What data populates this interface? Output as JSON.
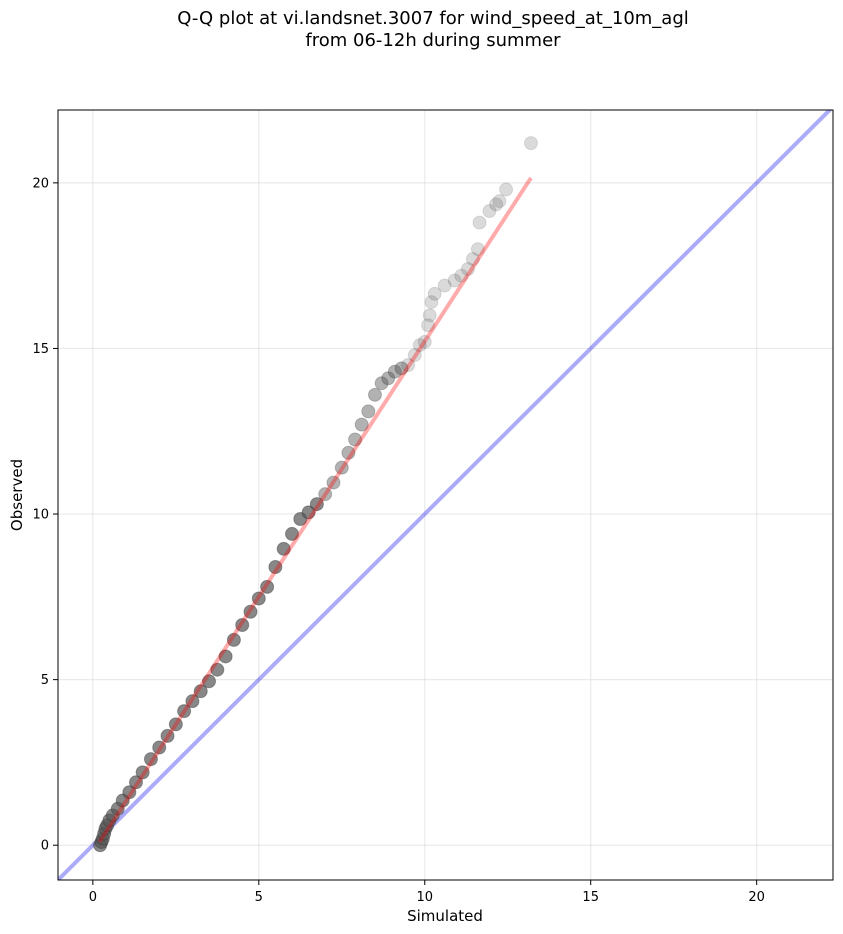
{
  "chart_data": {
    "type": "scatter",
    "title_line1": "Q-Q plot at vi.landsnet.3007 for wind_speed_at_10m_agl",
    "title_line2": "from 06-12h during summer",
    "xlabel": "Simulated",
    "ylabel": "Observed",
    "xlim": [
      -1.05,
      22.3
    ],
    "ylim": [
      -1.05,
      22.2
    ],
    "xticks": [
      0,
      5,
      10,
      15,
      20
    ],
    "yticks": [
      0,
      5,
      10,
      15,
      20
    ],
    "grid": true,
    "colors": {
      "points": "#555555",
      "fit_line": "#ff0000",
      "identity_line": "#0000ee",
      "grid": "#d8d8d8"
    },
    "fit_line": {
      "x": [
        0.2,
        13.2
      ],
      "y": [
        0.1,
        20.15
      ]
    },
    "identity_line": {
      "x": [
        -1.05,
        22.3
      ],
      "y": [
        -1.05,
        22.3
      ]
    },
    "points": {
      "x": [
        0.22,
        0.26,
        0.3,
        0.34,
        0.38,
        0.43,
        0.5,
        0.6,
        0.75,
        0.9,
        1.1,
        1.3,
        1.5,
        1.75,
        2.0,
        2.25,
        2.5,
        2.75,
        3.0,
        3.25,
        3.5,
        3.75,
        4.0,
        4.25,
        4.5,
        4.75,
        5.0,
        5.25,
        5.5,
        5.75,
        6.0,
        6.25,
        6.5,
        6.75,
        7.0,
        7.25,
        7.5,
        7.7,
        7.9,
        8.1,
        8.3,
        8.5,
        8.7,
        8.9,
        9.1,
        9.3,
        9.5,
        9.7,
        9.85,
        10.0,
        10.1,
        10.15,
        10.2,
        10.3,
        10.6,
        10.9,
        11.1,
        11.3,
        11.45,
        11.6,
        11.65,
        11.95,
        12.15,
        12.25,
        12.45,
        13.2
      ],
      "y": [
        0.0,
        0.1,
        0.2,
        0.35,
        0.5,
        0.6,
        0.75,
        0.9,
        1.1,
        1.35,
        1.6,
        1.9,
        2.2,
        2.6,
        2.95,
        3.3,
        3.65,
        4.05,
        4.35,
        4.65,
        4.95,
        5.3,
        5.7,
        6.2,
        6.65,
        7.05,
        7.45,
        7.8,
        8.4,
        8.95,
        9.4,
        9.85,
        10.05,
        10.3,
        10.6,
        10.95,
        11.4,
        11.85,
        12.25,
        12.7,
        13.1,
        13.6,
        13.95,
        14.1,
        14.3,
        14.4,
        14.5,
        14.8,
        15.1,
        15.2,
        15.7,
        16.0,
        16.4,
        16.65,
        16.9,
        17.05,
        17.2,
        17.4,
        17.7,
        18.0,
        18.8,
        19.15,
        19.35,
        19.45,
        19.8,
        21.2
      ]
    }
  }
}
